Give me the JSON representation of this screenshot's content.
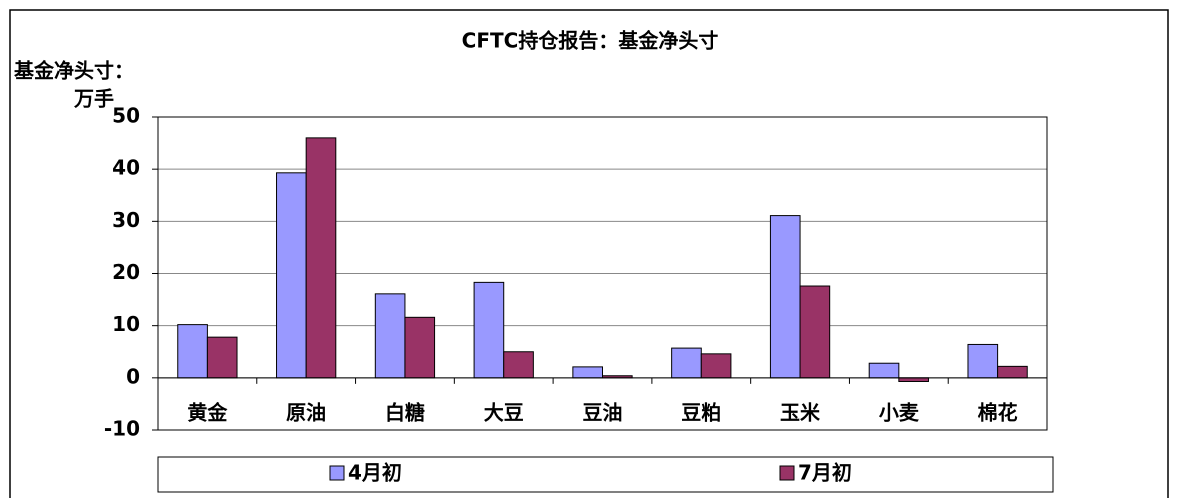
{
  "chart_data": {
    "type": "bar",
    "title": "CFTC持仓报告：基金净头寸",
    "ylabel": [
      "基金净头寸：",
      "万手"
    ],
    "categories": [
      "黄金",
      "原油",
      "白糖",
      "大豆",
      "豆油",
      "豆粕",
      "玉米",
      "小麦",
      "棉花"
    ],
    "series": [
      {
        "name": "4月初",
        "color": "#9999ff",
        "values": [
          10.2,
          39.3,
          16.1,
          18.3,
          2.1,
          5.7,
          31.1,
          2.8,
          6.4
        ]
      },
      {
        "name": "7月初",
        "color": "#993366",
        "values": [
          7.8,
          46,
          11.6,
          5,
          0.4,
          4.6,
          17.6,
          -0.7,
          2.2
        ]
      }
    ],
    "ylim": [
      -10,
      50
    ],
    "yticks": [
      -10,
      0,
      10,
      20,
      30,
      40,
      50
    ],
    "grid": true,
    "legend": "bottom"
  }
}
